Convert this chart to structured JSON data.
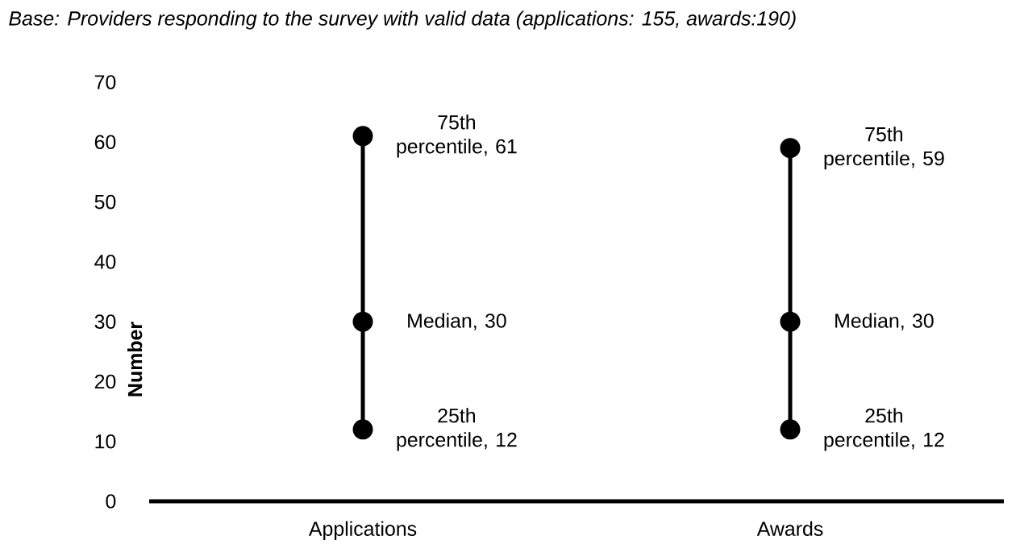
{
  "chart_data": {
    "type": "line",
    "title": "Base: Providers responding to the survey with valid data (applications: 155, awards:190)",
    "ylabel": "Number",
    "categories": [
      "Applications",
      "Awards"
    ],
    "series": [
      {
        "color": "#000000",
        "x": [
          "Applications",
          "Applications",
          "Applications"
        ],
        "values": [
          12,
          30,
          61
        ],
        "value_labels": [
          "25th percentile, 12",
          "Median, 30",
          "75th percentile, 61"
        ]
      },
      {
        "color": "#000000",
        "x": [
          "Awards",
          "Awards",
          "Awards"
        ],
        "values": [
          12,
          30,
          59
        ],
        "value_labels": [
          "25th percentile, 12",
          "Median, 30",
          "75th percentile, 59"
        ]
      }
    ],
    "ylim": [
      0,
      70
    ],
    "yticks": [
      0,
      10,
      20,
      30,
      40,
      50,
      60,
      70
    ],
    "marker": "circle",
    "line_style": "solid",
    "grid": false
  }
}
